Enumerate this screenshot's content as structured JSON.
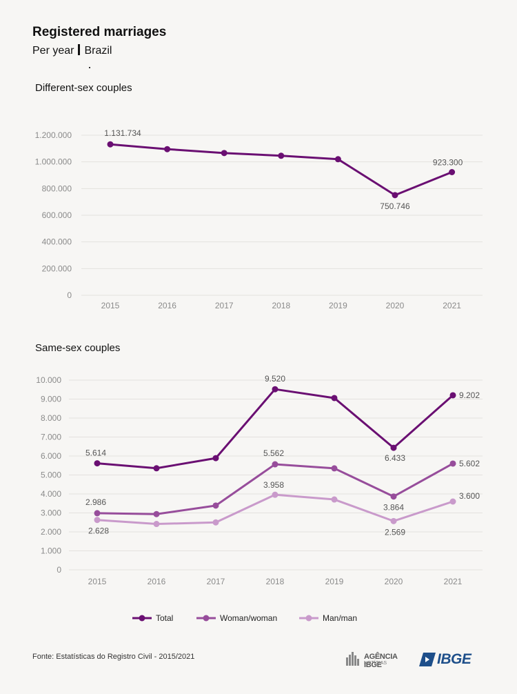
{
  "header": {
    "title": "Registered marriages",
    "subtitle_left": "Per year",
    "subtitle_right": "Brazil"
  },
  "colors": {
    "total": "#6a0f72",
    "woman_woman": "#974d9b",
    "man_man": "#c99acb",
    "grid": "#e3e1de"
  },
  "chart_data": [
    {
      "type": "line",
      "title": "Different-sex couples",
      "xlabel": "",
      "ylabel": "",
      "x": [
        "2015",
        "2016",
        "2017",
        "2018",
        "2019",
        "2020",
        "2021"
      ],
      "y_ticks": [
        "0",
        "200.000",
        "400.000",
        "600.000",
        "800.000",
        "1.000.000",
        "1.200.000"
      ],
      "ylim": [
        0,
        1200000
      ],
      "grid": true,
      "series": [
        {
          "name": "Total",
          "values": [
            1131734,
            1095535,
            1066404,
            1046000,
            1020000,
            750746,
            923300
          ],
          "data_labels": [
            "1.131.734",
            "",
            "",
            "",
            "",
            "750.746",
            "923.300"
          ]
        }
      ]
    },
    {
      "type": "line",
      "title": "Same-sex couples",
      "xlabel": "",
      "ylabel": "",
      "x": [
        "2015",
        "2016",
        "2017",
        "2018",
        "2019",
        "2020",
        "2021"
      ],
      "y_ticks": [
        "0",
        "1.000",
        "2.000",
        "3.000",
        "4.000",
        "5.000",
        "6.000",
        "7.000",
        "8.000",
        "9.000",
        "10.000"
      ],
      "ylim": [
        0,
        10000
      ],
      "grid": true,
      "legend": "bottom",
      "series": [
        {
          "name": "Total",
          "values": [
            5614,
            5354,
            5887,
            9520,
            9056,
            6433,
            9202
          ],
          "data_labels": [
            "5.614",
            "",
            "",
            "9.520",
            "",
            "6.433",
            "9.202"
          ]
        },
        {
          "name": "Woman/woman",
          "values": [
            2986,
            2937,
            3387,
            5562,
            5348,
            3864,
            5602
          ],
          "data_labels": [
            "2.986",
            "",
            "",
            "5.562",
            "",
            "3.864",
            "5.602"
          ]
        },
        {
          "name": "Man/man",
          "values": [
            2628,
            2417,
            2500,
            3958,
            3708,
            2569,
            3600
          ],
          "data_labels": [
            "2.628",
            "",
            "",
            "3.958",
            "",
            "2.569",
            "3.600"
          ]
        }
      ]
    }
  ],
  "footer": {
    "source": "Fonte: Estatísticas do Registro Civil - 2015/2021",
    "agencia_logo_text": "AGÊNCIA IBGE",
    "agencia_logo_sub": "NOTÍCIAS",
    "ibge_logo_text": "IBGE"
  }
}
